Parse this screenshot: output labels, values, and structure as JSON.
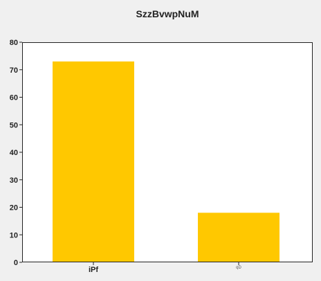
{
  "chart_data": {
    "type": "bar",
    "title": "SzzBvwpNuM",
    "xlabel": "",
    "ylabel": "",
    "categories": [
      "iPf",
      "qD"
    ],
    "values": [
      73,
      18
    ],
    "ylim": [
      0,
      80
    ],
    "yticks": [
      0,
      10,
      20,
      30,
      40,
      50,
      60,
      70,
      80
    ],
    "grid": false,
    "legend": "none",
    "bar_color": "#ffc800",
    "plot_background": "#ffffff",
    "figure_background": "#f0f0f0"
  }
}
